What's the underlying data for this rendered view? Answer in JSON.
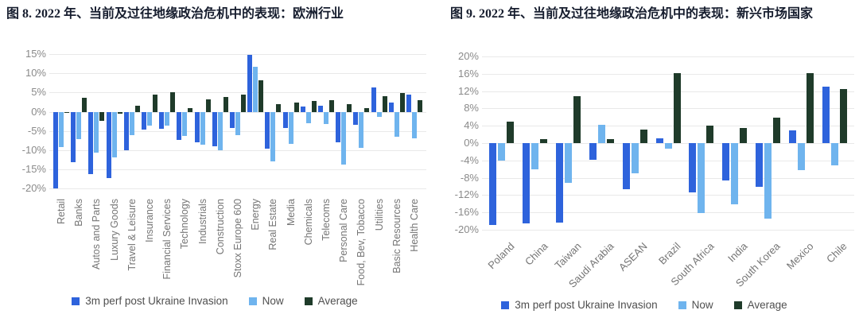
{
  "page": {
    "background": "#ffffff"
  },
  "colors": {
    "series_3m": "#2E63DC",
    "series_now": "#6FB4EE",
    "series_avg": "#1F3B2A",
    "gridline": "#e9e9e9",
    "tick_text": "#8a8a8a",
    "category_text": "#757575",
    "legend_text": "#4f4f4f",
    "title_text": "#161d2e"
  },
  "chart_data": [
    {
      "type": "bar",
      "title": "图 8. 2022 年、当前及过往地缘政治危机中的表现：欧洲行业",
      "categories": [
        "Retail",
        "Banks",
        "Autos and Parts",
        "Luxury Goods",
        "Travel & Leisure",
        "Insurance",
        "Financial Services",
        "Technology",
        "Industrials",
        "Construction",
        "Stoxx Europe 600",
        "Energy",
        "Real Estate",
        "Media",
        "Chemicals",
        "Telecoms",
        "Personal Care",
        "Food, Bev, Tobacco",
        "Utilities",
        "Basic Resources",
        "Health Care"
      ],
      "series": [
        {
          "name": "3m perf post Ukraine Invasion",
          "color": "#2E63DC",
          "values": [
            -20.0,
            -13.0,
            -16.1,
            -17.2,
            -9.9,
            -4.6,
            -4.5,
            -7.3,
            -8.0,
            -9.0,
            -4.2,
            14.8,
            -9.6,
            -4.3,
            1.4,
            1.5,
            -8.0,
            -3.4,
            6.3,
            2.5,
            4.4
          ]
        },
        {
          "name": "Now",
          "color": "#6FB4EE",
          "values": [
            -9.2,
            -7.1,
            -10.6,
            -11.8,
            -6.0,
            -3.6,
            -3.6,
            -6.3,
            -8.6,
            -10.1,
            -6.0,
            11.7,
            -12.9,
            -8.3,
            -2.9,
            -3.2,
            -13.8,
            -9.4,
            -1.3,
            -6.5,
            -6.8
          ]
        },
        {
          "name": "Average",
          "color": "#1F3B2A",
          "values": [
            -0.2,
            3.7,
            -2.3,
            -0.4,
            1.5,
            4.4,
            5.1,
            0.9,
            3.3,
            3.8,
            4.5,
            8.2,
            1.9,
            2.5,
            2.8,
            3.0,
            1.9,
            1.0,
            4.0,
            4.8,
            3.0
          ]
        }
      ],
      "ylim": [
        -20,
        15
      ],
      "ytick_step": 5,
      "yticks": [
        "15%",
        "10%",
        "5%",
        "0%",
        "-5%",
        "-10%",
        "-15%",
        "-20%"
      ],
      "grid": true,
      "legend_position": "bottom",
      "xlabel": "",
      "ylabel": ""
    },
    {
      "type": "bar",
      "title": "图 9. 2022 年、当前及过往地缘政治危机中的表现：新兴市场国家",
      "categories": [
        "Poland",
        "China",
        "Taiwan",
        "Saudi Arabia",
        "ASEAN",
        "Brazil",
        "South Africa",
        "India",
        "South Korea",
        "Mexico",
        "Chile"
      ],
      "series": [
        {
          "name": "3m perf post Ukraine Invasion",
          "color": "#2E63DC",
          "values": [
            -18.9,
            -18.5,
            -18.3,
            -3.8,
            -10.6,
            1.1,
            -11.4,
            -8.6,
            -10.0,
            3.0,
            13.1
          ]
        },
        {
          "name": "Now",
          "color": "#6FB4EE",
          "values": [
            -4.1,
            -6.0,
            -9.1,
            4.2,
            -7.0,
            -1.2,
            -16.2,
            -14.1,
            -17.5,
            -6.2,
            -5.2
          ]
        },
        {
          "name": "Average",
          "color": "#1F3B2A",
          "values": [
            4.9,
            0.9,
            10.8,
            1.0,
            3.1,
            16.1,
            4.0,
            3.4,
            5.8,
            16.2,
            12.5
          ]
        }
      ],
      "ylim": [
        -20,
        20
      ],
      "ytick_step": 4,
      "yticks": [
        "20%",
        "16%",
        "12%",
        "8%",
        "4%",
        "0%",
        "-4%",
        "-8%",
        "-12%",
        "-16%",
        "-20%"
      ],
      "grid": true,
      "legend_position": "bottom",
      "xlabel": "",
      "ylabel": ""
    }
  ]
}
